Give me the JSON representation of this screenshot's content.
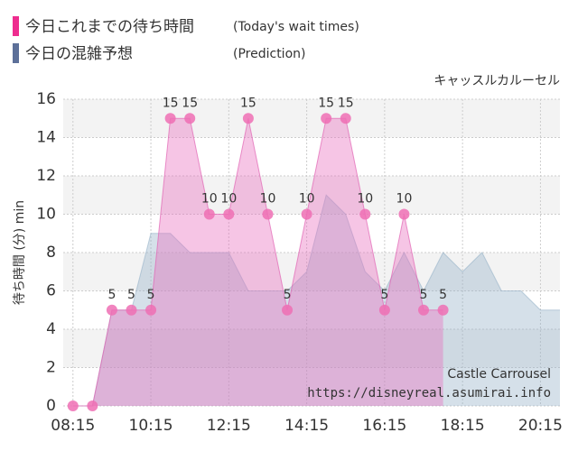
{
  "chart_data": {
    "type": "area",
    "subtitle": "キャッスルカルーセル",
    "ylabel": "待ち時間 (分) min",
    "annotations": [
      "Castle Carrousel",
      "https://disneyreal.asumirai.info"
    ],
    "xlim": [
      "08:00",
      "20:45"
    ],
    "xticks": [
      "08:15",
      "10:15",
      "12:15",
      "14:15",
      "16:15",
      "18:15",
      "20:15"
    ],
    "ylim": [
      0,
      16
    ],
    "yticks": [
      0,
      2,
      4,
      6,
      8,
      10,
      12,
      14,
      16
    ],
    "grid": true,
    "series": [
      {
        "name": "今日これまでの待ち時間",
        "name_en": "(Today's wait times)",
        "color": "#ee6fb4",
        "points": true,
        "x": [
          "08:15",
          "08:45",
          "09:15",
          "09:45",
          "10:15",
          "10:45",
          "11:15",
          "11:45",
          "12:15",
          "12:45",
          "13:15",
          "13:45",
          "14:15",
          "14:45",
          "15:15",
          "15:45",
          "16:15",
          "16:45",
          "17:15",
          "17:45"
        ],
        "values": [
          0,
          0,
          5,
          5,
          5,
          15,
          15,
          10,
          10,
          15,
          10,
          5,
          10,
          15,
          15,
          10,
          5,
          10,
          5,
          5
        ]
      },
      {
        "name": "今日の混雑予想",
        "name_en": "(Prediction)",
        "color": "#6a7fa6",
        "points": false,
        "x": [
          "08:15",
          "08:45",
          "09:15",
          "09:45",
          "10:15",
          "10:45",
          "11:15",
          "11:45",
          "12:15",
          "12:45",
          "13:15",
          "13:45",
          "14:15",
          "14:45",
          "15:15",
          "15:45",
          "16:15",
          "16:45",
          "17:15",
          "17:45",
          "18:15",
          "18:45",
          "19:15",
          "19:45",
          "20:15",
          "20:45"
        ],
        "values": [
          0,
          0,
          5,
          5,
          9,
          9,
          8,
          8,
          8,
          6,
          6,
          6,
          7,
          11,
          10,
          7,
          6,
          8,
          6,
          8,
          7,
          8,
          6,
          6,
          5,
          5
        ]
      }
    ]
  }
}
